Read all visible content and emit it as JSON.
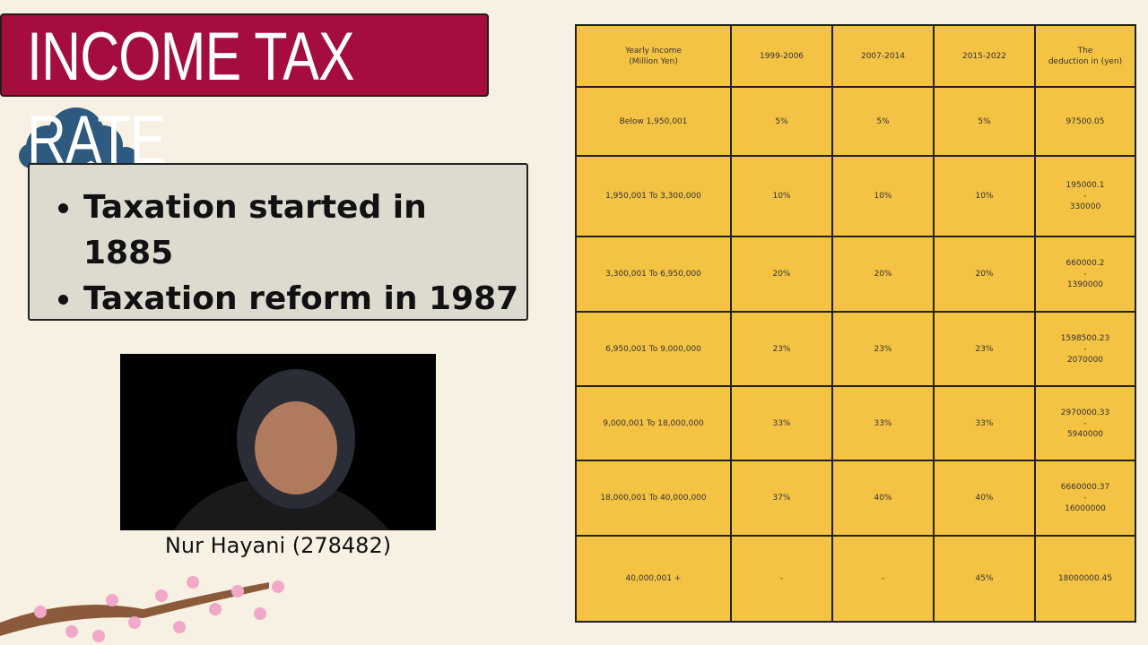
{
  "slide": {
    "title": "INCOME TAX RATE",
    "bullets": [
      "Taxation started in 1885",
      "Taxation reform in 1987"
    ],
    "caption": "Nur Hayani (278482)",
    "table": {
      "header": [
        [
          "Yearly Income",
          "(Million Yen)"
        ],
        [
          "1999-2006"
        ],
        [
          "2007-2014"
        ],
        [
          "2015-2022"
        ],
        [
          "The",
          "deduction in (yen)"
        ]
      ],
      "rows": [
        [
          [
            "Below  1,950,001"
          ],
          [
            "5%"
          ],
          [
            "5%"
          ],
          [
            "5%"
          ],
          [
            "97500.05"
          ]
        ],
        [
          [
            "1,950,001 To 3,300,000"
          ],
          [
            "10%"
          ],
          [
            "10%"
          ],
          [
            "10%"
          ],
          [
            "195000.1",
            "-",
            "330000"
          ]
        ],
        [
          [
            "3,300,001 To 6,950,000"
          ],
          [
            "20%"
          ],
          [
            "20%"
          ],
          [
            "20%"
          ],
          [
            "660000.2",
            "-",
            "1390000"
          ]
        ],
        [
          [
            "6,950,001 To 9,000,000"
          ],
          [
            "23%"
          ],
          [
            "23%"
          ],
          [
            "23%"
          ],
          [
            "1598500.23",
            "-",
            "2070000"
          ]
        ],
        [
          [
            "9,000,001 To 18,000,000"
          ],
          [
            "33%"
          ],
          [
            "33%"
          ],
          [
            "33%"
          ],
          [
            "2970000.33",
            "-",
            "5940000"
          ]
        ],
        [
          [
            "18,000,001 To 40,000,000"
          ],
          [
            "37%"
          ],
          [
            "40%"
          ],
          [
            "40%"
          ],
          [
            "6660000.37",
            "-",
            "16000000"
          ]
        ],
        [
          [
            "40,000,001 +"
          ],
          [
            "-"
          ],
          [
            "-"
          ],
          [
            "45%"
          ],
          [
            "18000000.45"
          ]
        ]
      ]
    }
  }
}
